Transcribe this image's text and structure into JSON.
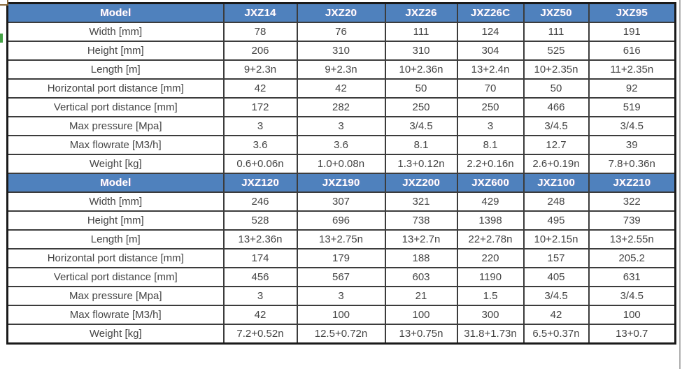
{
  "colors": {
    "header_bg": "#4f81bd",
    "header_text": "#ffffff",
    "body_text": "#454545",
    "grid_border": "#3c3c3c",
    "outer_border": "#1a1a1a",
    "green_edge_mark": "#44a244"
  },
  "table": {
    "header_label": "Model",
    "row_labels": [
      "Width [mm]",
      "Height [mm]",
      "Length [m]",
      "Horizontal port distance [mm]",
      "Vertical port distance  [mm]",
      "Max pressure [Mpa]",
      "Max flowrate  [M3/h]",
      "Weight [kg]"
    ],
    "sections": [
      {
        "models": [
          "JXZ14",
          "JXZ20",
          "JXZ26",
          "JXZ26C",
          "JXZ50",
          "JXZ95"
        ],
        "rows": [
          [
            "78",
            "76",
            "111",
            "124",
            "111",
            "191"
          ],
          [
            "206",
            "310",
            "310",
            "304",
            "525",
            "616"
          ],
          [
            "9+2.3n",
            "9+2.3n",
            "10+2.36n",
            "13+2.4n",
            "10+2.35n",
            "11+2.35n"
          ],
          [
            "42",
            "42",
            "50",
            "70",
            "50",
            "92"
          ],
          [
            "172",
            "282",
            "250",
            "250",
            "466",
            "519"
          ],
          [
            "3",
            "3",
            "3/4.5",
            "3",
            "3/4.5",
            "3/4.5"
          ],
          [
            "3.6",
            "3.6",
            "8.1",
            "8.1",
            "12.7",
            "39"
          ],
          [
            "0.6+0.06n",
            "1.0+0.08n",
            "1.3+0.12n",
            "2.2+0.16n",
            "2.6+0.19n",
            "7.8+0.36n"
          ]
        ]
      },
      {
        "models": [
          "JXZ120",
          "JXZ190",
          "JXZ200",
          "JXZ600",
          "JXZ100",
          "JXZ210"
        ],
        "rows": [
          [
            "246",
            "307",
            "321",
            "429",
            "248",
            "322"
          ],
          [
            "528",
            "696",
            "738",
            "1398",
            "495",
            "739"
          ],
          [
            "13+2.36n",
            "13+2.75n",
            "13+2.7n",
            "22+2.78n",
            "10+2.15n",
            "13+2.55n"
          ],
          [
            "174",
            "179",
            "188",
            "220",
            "157",
            "205.2"
          ],
          [
            "456",
            "567",
            "603",
            "1190",
            "405",
            "631"
          ],
          [
            "3",
            "3",
            "21",
            "1.5",
            "3/4.5",
            "3/4.5"
          ],
          [
            "42",
            "100",
            "100",
            "300",
            "42",
            "100"
          ],
          [
            "7.2+0.52n",
            "12.5+0.72n",
            "13+0.75n",
            "31.8+1.73n",
            "6.5+0.37n",
            "13+0.7"
          ]
        ]
      }
    ]
  }
}
